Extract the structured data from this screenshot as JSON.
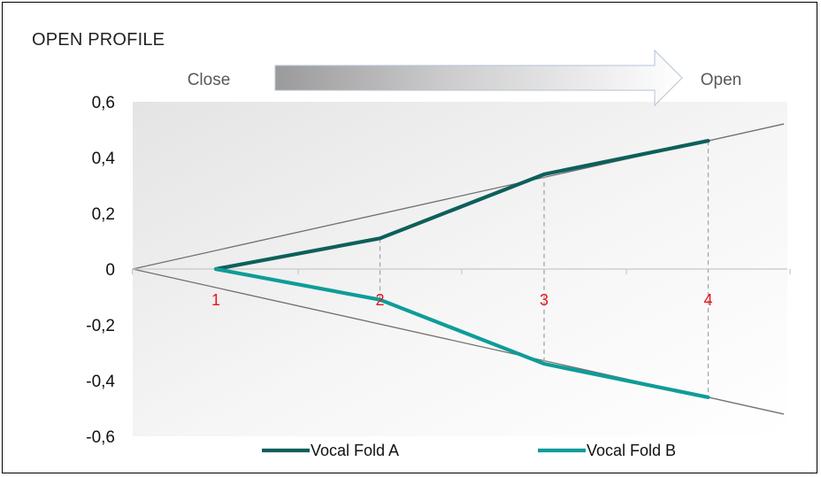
{
  "title": "OPEN PROFILE",
  "arrow": {
    "start_label": "Close",
    "end_label": "Open"
  },
  "colors": {
    "series_a": "#0e5f5b",
    "series_b": "#0f9c98",
    "category_labels": "#e8151b",
    "reference_lines": "#707070",
    "dashed_lines": "#a6a6a6"
  },
  "chart_data": {
    "type": "line",
    "title": "OPEN PROFILE",
    "xlabel": "",
    "ylabel": "",
    "categories": [
      "1",
      "2",
      "3",
      "4"
    ],
    "x": [
      1,
      2,
      3,
      4
    ],
    "ylim": [
      -0.6,
      0.6
    ],
    "yticks": [
      -0.6,
      -0.4,
      -0.2,
      0,
      0.2,
      0.4,
      0.6
    ],
    "ytick_labels": [
      "-0,6",
      "-0,4",
      "-0,2",
      "0",
      "0,2",
      "0,4",
      "0,6"
    ],
    "grid": false,
    "legend_position": "bottom",
    "series": [
      {
        "name": "Vocal Fold A",
        "values": [
          0,
          0.11,
          0.34,
          0.46
        ]
      },
      {
        "name": "Vocal Fold B",
        "values": [
          0,
          -0.11,
          -0.34,
          -0.46
        ]
      }
    ]
  }
}
